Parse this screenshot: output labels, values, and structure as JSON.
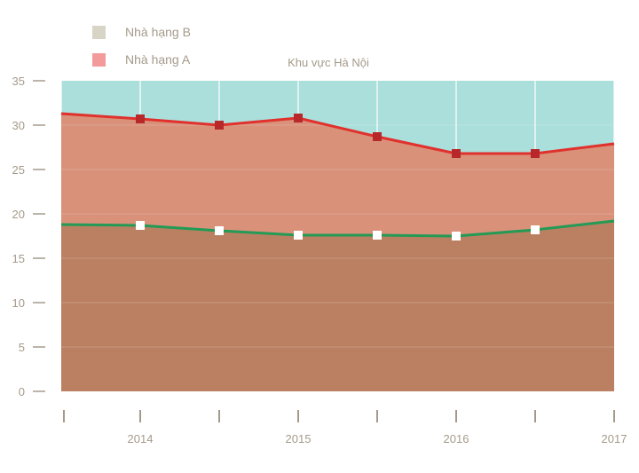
{
  "chart_data": {
    "type": "area",
    "title": "Khu vực Hà Nội",
    "x": [
      2013.5,
      2014,
      2014.5,
      2015,
      2015.5,
      2016,
      2016.5,
      2017
    ],
    "x_tick_labels": [
      "2014",
      "2015",
      "2016",
      "2017"
    ],
    "x_tick_values": [
      2014,
      2015,
      2016,
      2017
    ],
    "ylim": [
      0,
      35
    ],
    "y_ticks": [
      0,
      5,
      10,
      15,
      20,
      25,
      30,
      35
    ],
    "series": [
      {
        "name": "Nhà hạng A",
        "values": [
          31.3,
          30.7,
          30.0,
          30.8,
          28.7,
          26.8,
          26.8,
          27.9
        ],
        "line_color": "#e0312d",
        "marker_color": "#b8272a",
        "fill_color": "#d9917a"
      },
      {
        "name": "Nhà hạng B",
        "values": [
          18.8,
          18.7,
          18.1,
          17.6,
          17.6,
          17.5,
          18.2,
          19.2
        ],
        "line_color": "#239a55",
        "marker_color": "#ffffff",
        "fill_color": "#bb8062"
      }
    ],
    "background_color": "#abdfdb",
    "legend": [
      {
        "label": "Nhà hạng B",
        "color": "#d8d5c7"
      },
      {
        "label": "Nhà hạng A",
        "color": "#f39b9b"
      }
    ],
    "legend_position": "top-left",
    "grid": true
  }
}
